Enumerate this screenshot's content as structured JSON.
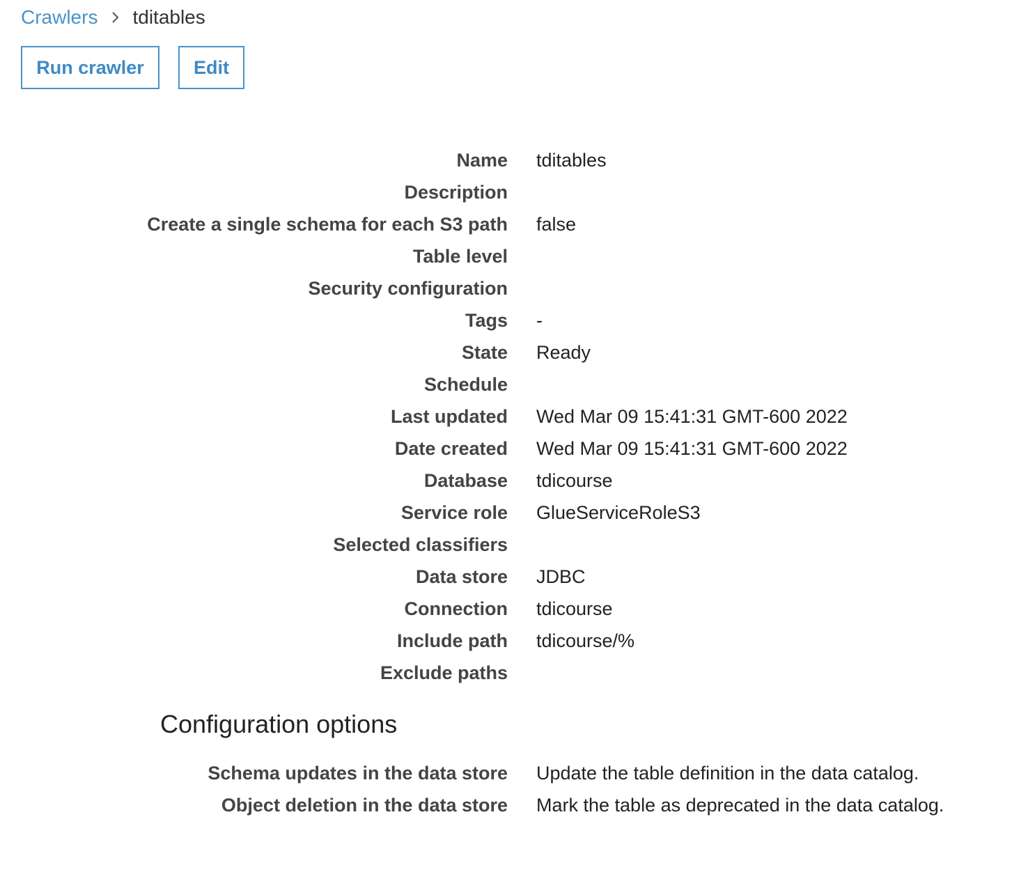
{
  "breadcrumb": {
    "parent": "Crawlers",
    "current": "tditables"
  },
  "icons": {
    "separator": "chevron-right-icon"
  },
  "toolbar": {
    "run_label": "Run crawler",
    "edit_label": "Edit"
  },
  "colors": {
    "link": "#4a92c9",
    "label": "#444444",
    "text": "#222222"
  },
  "details": [
    {
      "label": "Name",
      "value": "tditables"
    },
    {
      "label": "Description",
      "value": ""
    },
    {
      "label": "Create a single schema for each S3 path",
      "value": "false"
    },
    {
      "label": "Table level",
      "value": ""
    },
    {
      "label": "Security configuration",
      "value": ""
    },
    {
      "label": "Tags",
      "value": "-"
    },
    {
      "label": "State",
      "value": "Ready"
    },
    {
      "label": "Schedule",
      "value": ""
    },
    {
      "label": "Last updated",
      "value": "Wed Mar 09 15:41:31 GMT-600 2022"
    },
    {
      "label": "Date created",
      "value": "Wed Mar 09 15:41:31 GMT-600 2022"
    },
    {
      "label": "Database",
      "value": "tdicourse"
    },
    {
      "label": "Service role",
      "value": "GlueServiceRoleS3"
    },
    {
      "label": "Selected classifiers",
      "value": ""
    },
    {
      "label": "Data store",
      "value": "JDBC"
    },
    {
      "label": "Connection",
      "value": "tdicourse"
    },
    {
      "label": "Include path",
      "value": "tdicourse/%"
    },
    {
      "label": "Exclude paths",
      "value": ""
    }
  ],
  "config": {
    "title": "Configuration options",
    "rows": [
      {
        "label": "Schema updates in the data store",
        "value": "Update the table definition in the data catalog."
      },
      {
        "label": "Object deletion in the data store",
        "value": "Mark the table as deprecated in the data catalog."
      }
    ]
  }
}
